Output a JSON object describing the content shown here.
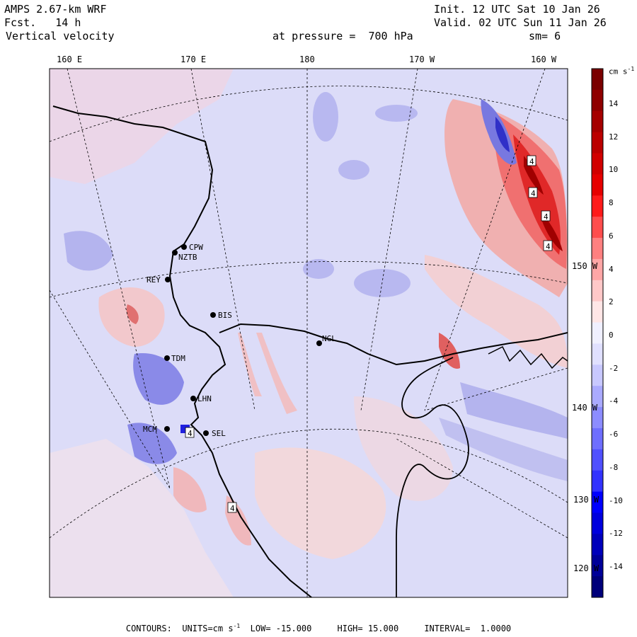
{
  "header": {
    "model": "AMPS 2.67-km WRF",
    "forecast": "Fcst.   14 h",
    "field": "Vertical velocity",
    "init": "Init. 12 UTC Sat 10 Jan 26",
    "valid": "Valid. 02 UTC Sun 11 Jan 26",
    "level": "at pressure =  700 hPa",
    "smoothing": "sm= 6"
  },
  "lon_labels": [
    "160 E",
    "170 E",
    "180",
    "170 W",
    "160 W"
  ],
  "lat_labels": [
    "150 W",
    "140 W",
    "130 W",
    "120 W"
  ],
  "stations": [
    {
      "name": "CPW"
    },
    {
      "name": "NZTB"
    },
    {
      "name": "REY"
    },
    {
      "name": "BIS"
    },
    {
      "name": "NGL"
    },
    {
      "name": "TDM"
    },
    {
      "name": "LHN"
    },
    {
      "name": "MCM"
    },
    {
      "name": "SEL"
    }
  ],
  "contour_labels": [
    "4",
    "4",
    "4",
    "4",
    "4",
    "4"
  ],
  "colorbar": {
    "unit_label": "cm s",
    "unit_exp": "-1",
    "ticks": [
      "14",
      "12",
      "10",
      "8",
      "6",
      "4",
      "2",
      "0",
      "-2",
      "-4",
      "-6",
      "-8",
      "-10",
      "-12",
      "-14"
    ],
    "colors": [
      "#7a0000",
      "#8f0000",
      "#a50000",
      "#bb0000",
      "#d10000",
      "#e60000",
      "#ff1a1a",
      "#ff4d4d",
      "#ff8080",
      "#ffa6a6",
      "#ffc8c8",
      "#ffe6e6",
      "#f0f0ff",
      "#e0e0ff",
      "#c8c8ff",
      "#aaaaff",
      "#8c8cff",
      "#6e6eff",
      "#5050ff",
      "#3232ff",
      "#0000ff",
      "#0000dd",
      "#0000bb",
      "#000099",
      "#00007a"
    ]
  },
  "footer": {
    "contours": "CONTOURS:",
    "units_pre": "UNITS=cm s",
    "units_exp": "-1",
    "low": "LOW= -15.000",
    "high": "HIGH= 15.000",
    "interval": "INTERVAL=  1.0000"
  },
  "colors": {
    "background_field": "#dcdcf8",
    "positive_light": "#f6d6d6",
    "positive_mid": "#f0a0a0",
    "positive_strong": "#e02020",
    "negative_light": "#c4c4f2",
    "negative_mid": "#8a8ae8",
    "negative_strong": "#2020e0",
    "coast": "#000000"
  }
}
